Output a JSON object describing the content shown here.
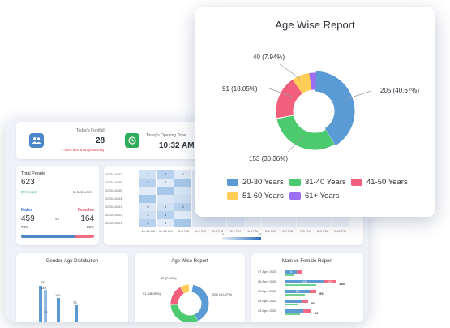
{
  "kpis": [
    {
      "label": "Today's Footfall",
      "value": "28",
      "delta": "↓ 85% less than yesterday",
      "icon": "people-icon",
      "color": "#4a86c8"
    },
    {
      "label": "Today's Opening Time",
      "value": "10:32 AM",
      "icon": "clock-icon",
      "color": "#2eab5a"
    }
  ],
  "total_people": {
    "label": "Total People",
    "value": "623",
    "delta": "89 People",
    "delta_suffix": "to last week",
    "males_label": "Males",
    "males_value": "459",
    "males_pct": "74%",
    "vs": "vs",
    "females_label": "Females",
    "females_value": "164",
    "females_pct": "26%",
    "male_share": 0.74
  },
  "heatmap": {
    "rows": [
      "2025-04-07",
      "2025-04-06",
      "2025-04-05",
      "2025-04-04",
      "2025-04-03",
      "2025-04-02",
      "2025-04-01"
    ],
    "cols": [
      "10-11 AM",
      "11-12 AM",
      "12-1 PM",
      "1-2 PM",
      "2-3 PM",
      "3-4 PM",
      "4-5 PM",
      "5-6 PM",
      "6-7 PM",
      "7-8 PM",
      "8-9 PM",
      "9-10 PM"
    ],
    "values": [
      [
        "4",
        "7",
        "6",
        "",
        "",
        "",
        "",
        "",
        "",
        "",
        "",
        ""
      ],
      [
        "3",
        "4",
        "",
        "",
        "",
        "",
        "",
        "",
        "",
        "",
        "",
        ""
      ],
      [
        "",
        "",
        "",
        "",
        "",
        "",
        "",
        "",
        "",
        "",
        "",
        ""
      ],
      [
        "",
        "",
        "",
        "",
        "",
        "",
        "",
        "",
        "",
        "",
        "",
        ""
      ],
      [
        "5",
        "6",
        "5",
        "",
        "",
        "",
        "",
        "",
        "",
        "",
        "",
        ""
      ],
      [
        "2",
        "6",
        "",
        "",
        "",
        "",
        "",
        "",
        "",
        "",
        "",
        ""
      ],
      [
        "4",
        "5",
        "",
        "",
        "",
        "",
        "",
        "",
        "",
        "",
        "",
        ""
      ]
    ],
    "scale_min": "0",
    "scale_max": "26"
  },
  "bottom": {
    "gender_title": "Gender-Age Distribution",
    "gender_labels": [
      "151",
      "135",
      "110",
      "75",
      "25"
    ],
    "age_title": "Age Wise Report",
    "age_small_labels": [
      "40 (7.94%)",
      "91 (18.05%)",
      "205 (40.67%)"
    ],
    "mvf_title": "Male vs Female Report",
    "mvf_rows": [
      {
        "date": "07 April 2025",
        "male": "8",
        "female": "",
        "total": ""
      },
      {
        "date": "06 April 2025",
        "male": "141",
        "female": "44",
        "total": "185"
      },
      {
        "date": "05 April 2025",
        "male": "88",
        "female": "",
        "total": "95"
      },
      {
        "date": "04 April 2025",
        "male": "",
        "female": "",
        "total": "60"
      },
      {
        "date": "03 April 2025",
        "male": "",
        "female": "",
        "total": "92"
      }
    ]
  },
  "popup": {
    "title": "Age Wise Report",
    "labels": {
      "top": "40 (7.94%)",
      "left": "91 (18.05%)",
      "right": "205 (40.67%)",
      "bottom": "153 (30.36%)"
    }
  },
  "chart_data": {
    "type": "pie",
    "title": "Age Wise Report",
    "categories": [
      "20-30 Years",
      "31-40 Years",
      "41-50 Years",
      "51-60 Years",
      "61+ Years"
    ],
    "values": [
      205,
      153,
      91,
      40,
      15
    ],
    "colors": [
      "#5b9bd5",
      "#4cca6e",
      "#f25f7c",
      "#ffcd56",
      "#9b6ef3"
    ],
    "legend_position": "bottom"
  }
}
